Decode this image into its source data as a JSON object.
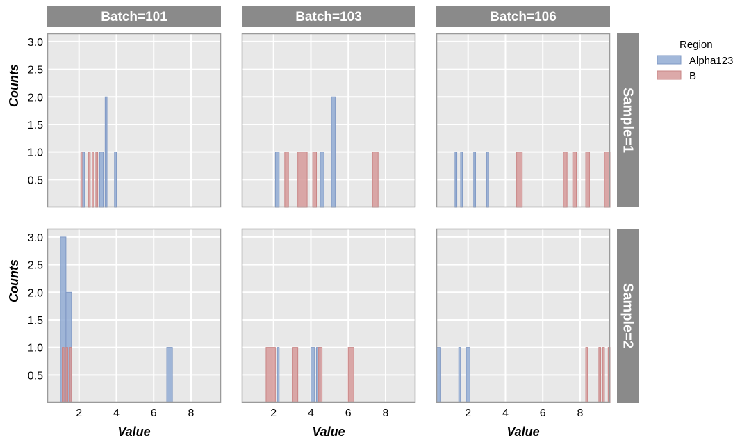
{
  "chart_data": {
    "type": "histogram-facets",
    "ylabel": "Counts",
    "xlabel": "Value",
    "xlim": [
      0.3,
      9.6
    ],
    "ylim": [
      0,
      3.15
    ],
    "xticks": [
      2,
      4,
      6,
      8
    ],
    "yticks": [
      0.5,
      1.0,
      1.5,
      2.0,
      2.5,
      3.0
    ],
    "legend": {
      "title": "Region",
      "position": "right",
      "entries": [
        {
          "name": "Alpha123",
          "color": "#92acd3",
          "border": "#7f98c4"
        },
        {
          "name": "B",
          "color": "#d69a9a",
          "border": "#c98585"
        }
      ]
    },
    "columns": [
      "Batch=101",
      "Batch=103",
      "Batch=106"
    ],
    "rows": [
      "Sample=1",
      "Sample=2"
    ],
    "grid": true,
    "panels": [
      {
        "row": 0,
        "col": 0,
        "bars": [
          {
            "s": "B",
            "x0": 2.1,
            "x1": 2.2,
            "y": 1
          },
          {
            "s": "Alpha123",
            "x0": 2.2,
            "x1": 2.3,
            "y": 1
          },
          {
            "s": "B",
            "x0": 2.5,
            "x1": 2.6,
            "y": 1
          },
          {
            "s": "B",
            "x0": 2.7,
            "x1": 2.8,
            "y": 1
          },
          {
            "s": "B",
            "x0": 2.9,
            "x1": 3.0,
            "y": 1
          },
          {
            "s": "Alpha123",
            "x0": 3.1,
            "x1": 3.3,
            "y": 1
          },
          {
            "s": "Alpha123",
            "x0": 3.4,
            "x1": 3.5,
            "y": 2
          },
          {
            "s": "Alpha123",
            "x0": 3.9,
            "x1": 4.0,
            "y": 1
          }
        ]
      },
      {
        "row": 0,
        "col": 1,
        "bars": [
          {
            "s": "Alpha123",
            "x0": 2.1,
            "x1": 2.3,
            "y": 1
          },
          {
            "s": "B",
            "x0": 2.6,
            "x1": 2.8,
            "y": 1
          },
          {
            "s": "B",
            "x0": 3.3,
            "x1": 3.8,
            "y": 1
          },
          {
            "s": "B",
            "x0": 4.1,
            "x1": 4.3,
            "y": 1
          },
          {
            "s": "Alpha123",
            "x0": 4.5,
            "x1": 4.7,
            "y": 1
          },
          {
            "s": "Alpha123",
            "x0": 5.1,
            "x1": 5.3,
            "y": 2
          },
          {
            "s": "B",
            "x0": 7.3,
            "x1": 7.6,
            "y": 1
          }
        ]
      },
      {
        "row": 0,
        "col": 2,
        "bars": [
          {
            "s": "Alpha123",
            "x0": 1.3,
            "x1": 1.4,
            "y": 1
          },
          {
            "s": "Alpha123",
            "x0": 1.6,
            "x1": 1.7,
            "y": 1
          },
          {
            "s": "Alpha123",
            "x0": 2.3,
            "x1": 2.4,
            "y": 1
          },
          {
            "s": "Alpha123",
            "x0": 3.0,
            "x1": 3.1,
            "y": 1
          },
          {
            "s": "B",
            "x0": 4.6,
            "x1": 4.9,
            "y": 1
          },
          {
            "s": "B",
            "x0": 7.1,
            "x1": 7.3,
            "y": 1
          },
          {
            "s": "B",
            "x0": 7.6,
            "x1": 7.8,
            "y": 1
          },
          {
            "s": "B",
            "x0": 8.3,
            "x1": 8.5,
            "y": 1
          },
          {
            "s": "B",
            "x0": 9.3,
            "x1": 9.6,
            "y": 1
          }
        ]
      },
      {
        "row": 1,
        "col": 0,
        "bars": [
          {
            "s": "Alpha123",
            "x0": 1.0,
            "x1": 1.3,
            "y": 3
          },
          {
            "s": "Alpha123",
            "x0": 1.3,
            "x1": 1.6,
            "y": 2
          },
          {
            "s": "B",
            "x0": 1.1,
            "x1": 1.2,
            "y": 1
          },
          {
            "s": "B",
            "x0": 1.3,
            "x1": 1.4,
            "y": 1
          },
          {
            "s": "B",
            "x0": 1.5,
            "x1": 1.6,
            "y": 1
          },
          {
            "s": "Alpha123",
            "x0": 6.7,
            "x1": 7.0,
            "y": 1
          }
        ]
      },
      {
        "row": 1,
        "col": 1,
        "bars": [
          {
            "s": "B",
            "x0": 1.6,
            "x1": 2.1,
            "y": 1
          },
          {
            "s": "Alpha123",
            "x0": 2.2,
            "x1": 2.3,
            "y": 1
          },
          {
            "s": "B",
            "x0": 3.0,
            "x1": 3.3,
            "y": 1
          },
          {
            "s": "Alpha123",
            "x0": 4.0,
            "x1": 4.2,
            "y": 1
          },
          {
            "s": "Alpha123",
            "x0": 4.3,
            "x1": 4.5,
            "y": 1
          },
          {
            "s": "B",
            "x0": 4.4,
            "x1": 4.6,
            "y": 1
          },
          {
            "s": "B",
            "x0": 6.0,
            "x1": 6.3,
            "y": 1
          }
        ]
      },
      {
        "row": 1,
        "col": 2,
        "bars": [
          {
            "s": "Alpha123",
            "x0": 0.3,
            "x1": 0.5,
            "y": 1
          },
          {
            "s": "Alpha123",
            "x0": 1.5,
            "x1": 1.6,
            "y": 1
          },
          {
            "s": "Alpha123",
            "x0": 1.9,
            "x1": 2.1,
            "y": 1
          },
          {
            "s": "B",
            "x0": 8.3,
            "x1": 8.4,
            "y": 1
          },
          {
            "s": "B",
            "x0": 9.0,
            "x1": 9.1,
            "y": 1
          },
          {
            "s": "B",
            "x0": 9.2,
            "x1": 9.3,
            "y": 1
          },
          {
            "s": "B",
            "x0": 9.5,
            "x1": 9.6,
            "y": 1
          }
        ]
      }
    ]
  }
}
